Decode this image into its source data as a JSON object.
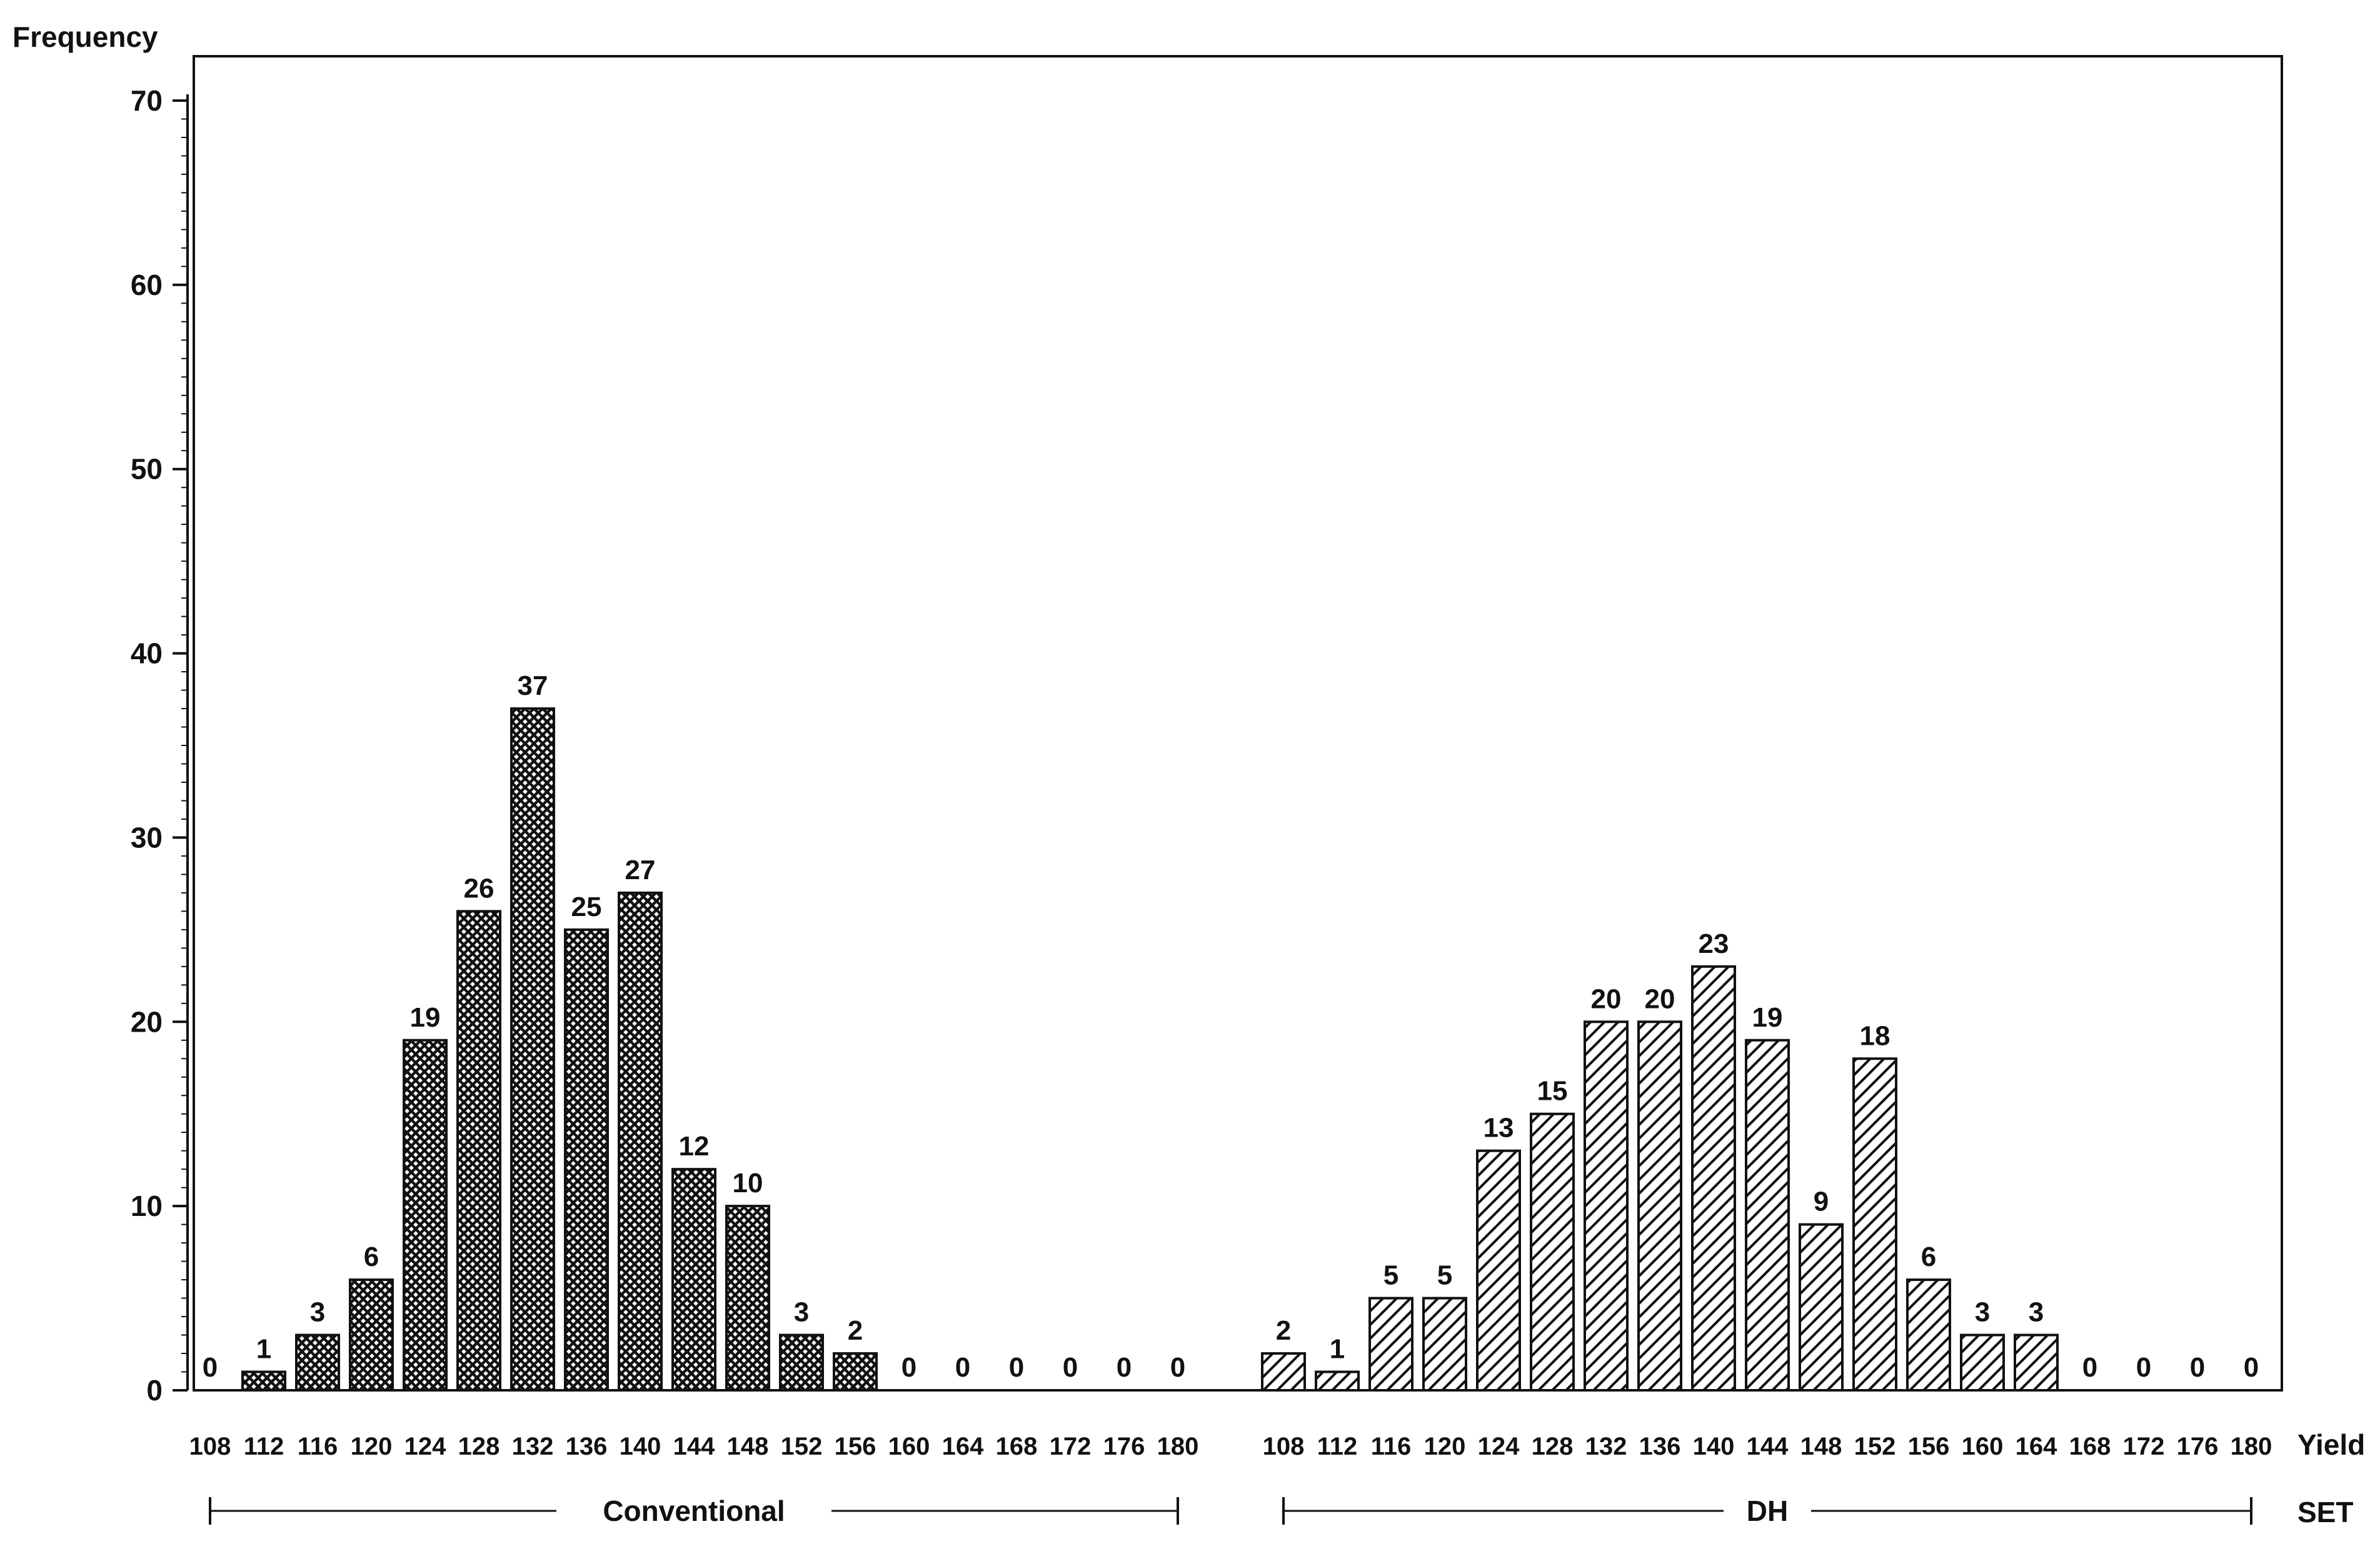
{
  "chart_data": {
    "type": "bar",
    "title": "",
    "ylabel": "Frequency",
    "xlabel": "Yield",
    "set_label": "SET",
    "ylim": [
      0,
      70
    ],
    "y_ticks": [
      0,
      10,
      20,
      30,
      40,
      50,
      60,
      70
    ],
    "grid": false,
    "groups": [
      {
        "name": "Conventional",
        "pattern": "crosshatch",
        "categories": [
          "108",
          "112",
          "116",
          "120",
          "124",
          "128",
          "132",
          "136",
          "140",
          "144",
          "148",
          "152",
          "156",
          "160",
          "164",
          "168",
          "172",
          "176",
          "180"
        ],
        "values": [
          0,
          1,
          3,
          6,
          19,
          26,
          37,
          25,
          27,
          12,
          10,
          3,
          2,
          0,
          0,
          0,
          0,
          0,
          0
        ]
      },
      {
        "name": "DH",
        "pattern": "diagonal",
        "categories": [
          "108",
          "112",
          "116",
          "120",
          "124",
          "128",
          "132",
          "136",
          "140",
          "144",
          "148",
          "152",
          "156",
          "160",
          "164",
          "168",
          "172",
          "176",
          "180"
        ],
        "values": [
          2,
          1,
          5,
          5,
          13,
          15,
          20,
          20,
          23,
          19,
          9,
          18,
          6,
          3,
          3,
          0,
          0,
          0,
          0
        ]
      }
    ]
  }
}
